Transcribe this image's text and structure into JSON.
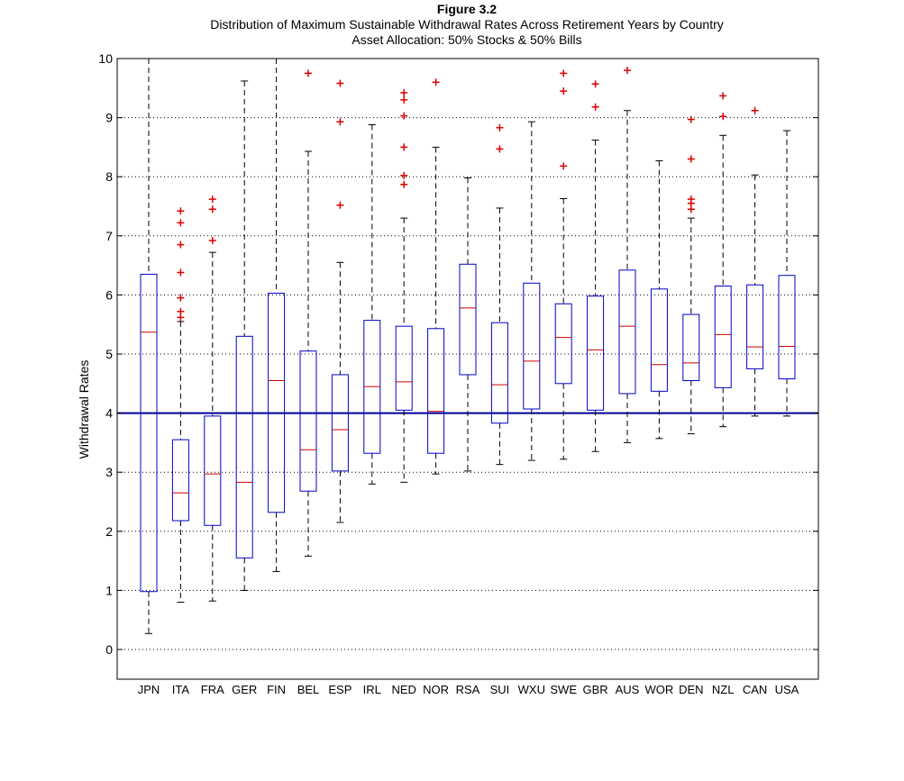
{
  "chart_data": {
    "type": "boxplot",
    "title": "Figure 3.2",
    "subtitle": "Distribution of Maximum Sustainable Withdrawal Rates Across Retirement Years by Country",
    "subtitle2": "Asset Allocation: 50% Stocks & 50% Bills",
    "xlabel": "",
    "ylabel": "Withdrawal Rates",
    "ylim": [
      -0.5,
      10
    ],
    "yticks": [
      "0",
      "1",
      "2",
      "3",
      "4",
      "5",
      "6",
      "7",
      "8",
      "9",
      "10"
    ],
    "grid": "horizontal dotted",
    "reference_line": 4,
    "colors": {
      "box": "#0000cc",
      "median": "#cc0000",
      "outlier": "#dd0000",
      "whisker": "#000000",
      "reference": "#000099"
    },
    "categories": [
      "JPN",
      "ITA",
      "FRA",
      "GER",
      "FIN",
      "BEL",
      "ESP",
      "IRL",
      "NED",
      "NOR",
      "RSA",
      "SUI",
      "WXU",
      "SWE",
      "GBR",
      "AUS",
      "WOR",
      "DEN",
      "NZL",
      "CAN",
      "USA"
    ],
    "boxes": [
      {
        "label": "JPN",
        "whisker_low": 0.27,
        "q1": 0.98,
        "median": 5.37,
        "q3": 6.35,
        "whisker_high": 10.0,
        "outliers": []
      },
      {
        "label": "ITA",
        "whisker_low": 0.8,
        "q1": 2.18,
        "median": 2.65,
        "q3": 3.55,
        "whisker_high": 5.55,
        "outliers": [
          5.62,
          5.72,
          5.95,
          6.38,
          6.85,
          7.22,
          7.42
        ]
      },
      {
        "label": "FRA",
        "whisker_low": 0.82,
        "q1": 2.1,
        "median": 2.97,
        "q3": 3.95,
        "whisker_high": 6.72,
        "outliers": [
          6.92,
          7.45,
          7.62
        ]
      },
      {
        "label": "GER",
        "whisker_low": 1.0,
        "q1": 1.55,
        "median": 2.83,
        "q3": 5.3,
        "whisker_high": 9.62,
        "outliers": []
      },
      {
        "label": "FIN",
        "whisker_low": 1.32,
        "q1": 2.32,
        "median": 4.55,
        "q3": 6.03,
        "whisker_high": 10.0,
        "outliers": []
      },
      {
        "label": "BEL",
        "whisker_low": 1.58,
        "q1": 2.68,
        "median": 3.38,
        "q3": 5.05,
        "whisker_high": 8.43,
        "outliers": [
          9.75
        ]
      },
      {
        "label": "ESP",
        "whisker_low": 2.15,
        "q1": 3.02,
        "median": 3.72,
        "q3": 4.65,
        "whisker_high": 6.55,
        "outliers": [
          7.52,
          8.93,
          9.58
        ]
      },
      {
        "label": "IRL",
        "whisker_low": 2.8,
        "q1": 3.32,
        "median": 4.45,
        "q3": 5.57,
        "whisker_high": 8.88,
        "outliers": []
      },
      {
        "label": "NED",
        "whisker_low": 2.83,
        "q1": 4.05,
        "median": 4.53,
        "q3": 5.47,
        "whisker_high": 7.3,
        "outliers": [
          7.87,
          8.02,
          8.5,
          9.03,
          9.3,
          9.42
        ]
      },
      {
        "label": "NOR",
        "whisker_low": 2.97,
        "q1": 3.32,
        "median": 4.03,
        "q3": 5.43,
        "whisker_high": 8.5,
        "outliers": [
          9.6
        ]
      },
      {
        "label": "RSA",
        "whisker_low": 3.02,
        "q1": 4.65,
        "median": 5.78,
        "q3": 6.52,
        "whisker_high": 7.98,
        "outliers": []
      },
      {
        "label": "SUI",
        "whisker_low": 3.13,
        "q1": 3.83,
        "median": 4.48,
        "q3": 5.53,
        "whisker_high": 7.47,
        "outliers": [
          8.47,
          8.83
        ]
      },
      {
        "label": "WXU",
        "whisker_low": 3.2,
        "q1": 4.07,
        "median": 4.88,
        "q3": 6.2,
        "whisker_high": 8.93,
        "outliers": []
      },
      {
        "label": "SWE",
        "whisker_low": 3.22,
        "q1": 4.5,
        "median": 5.28,
        "q3": 5.85,
        "whisker_high": 7.63,
        "outliers": [
          8.18,
          9.45,
          9.75
        ]
      },
      {
        "label": "GBR",
        "whisker_low": 3.35,
        "q1": 4.05,
        "median": 5.07,
        "q3": 5.98,
        "whisker_high": 8.62,
        "outliers": [
          9.18,
          9.57
        ]
      },
      {
        "label": "AUS",
        "whisker_low": 3.5,
        "q1": 4.33,
        "median": 5.47,
        "q3": 6.42,
        "whisker_high": 9.12,
        "outliers": [
          9.8
        ]
      },
      {
        "label": "WOR",
        "whisker_low": 3.57,
        "q1": 4.37,
        "median": 4.82,
        "q3": 6.1,
        "whisker_high": 8.27,
        "outliers": []
      },
      {
        "label": "DEN",
        "whisker_low": 3.65,
        "q1": 4.55,
        "median": 4.85,
        "q3": 5.67,
        "whisker_high": 7.3,
        "outliers": [
          7.45,
          7.55,
          7.62,
          8.3,
          8.97
        ]
      },
      {
        "label": "NZL",
        "whisker_low": 3.77,
        "q1": 4.43,
        "median": 5.33,
        "q3": 6.15,
        "whisker_high": 8.7,
        "outliers": [
          9.02,
          9.37
        ]
      },
      {
        "label": "CAN",
        "whisker_low": 3.95,
        "q1": 4.75,
        "median": 5.12,
        "q3": 6.17,
        "whisker_high": 8.03,
        "outliers": [
          9.12
        ]
      },
      {
        "label": "USA",
        "whisker_low": 3.95,
        "q1": 4.58,
        "median": 5.13,
        "q3": 6.33,
        "whisker_high": 8.78,
        "outliers": []
      }
    ]
  }
}
